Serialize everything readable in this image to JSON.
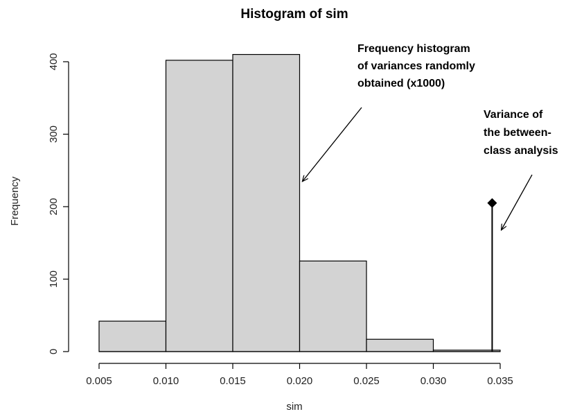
{
  "chart_data": {
    "type": "bar",
    "title": "Histogram of sim",
    "xlabel": "sim",
    "ylabel": "Frequency",
    "xlim": [
      0.005,
      0.035
    ],
    "ylim": [
      0,
      400
    ],
    "x_ticks": [
      "0.005",
      "0.010",
      "0.015",
      "0.020",
      "0.025",
      "0.030",
      "0.035"
    ],
    "y_ticks": [
      "0",
      "100",
      "200",
      "300",
      "400"
    ],
    "bins": [
      {
        "from": 0.005,
        "to": 0.01,
        "count": 42
      },
      {
        "from": 0.01,
        "to": 0.015,
        "count": 402
      },
      {
        "from": 0.015,
        "to": 0.02,
        "count": 410
      },
      {
        "from": 0.02,
        "to": 0.025,
        "count": 125
      },
      {
        "from": 0.025,
        "to": 0.03,
        "count": 17
      },
      {
        "from": 0.03,
        "to": 0.035,
        "count": 2
      }
    ],
    "observed_marker": {
      "x": 0.0344,
      "y": 205,
      "shape": "diamond"
    },
    "bar_color": "#d3d3d3",
    "edge_color": "#000000",
    "grid": false,
    "annotations": [
      {
        "lines": [
          "Frequency histogram",
          "of variances randomly",
          "obtained (x1000)"
        ]
      },
      {
        "lines": [
          "Variance  of",
          "the between-",
          "class analysis"
        ]
      }
    ]
  }
}
